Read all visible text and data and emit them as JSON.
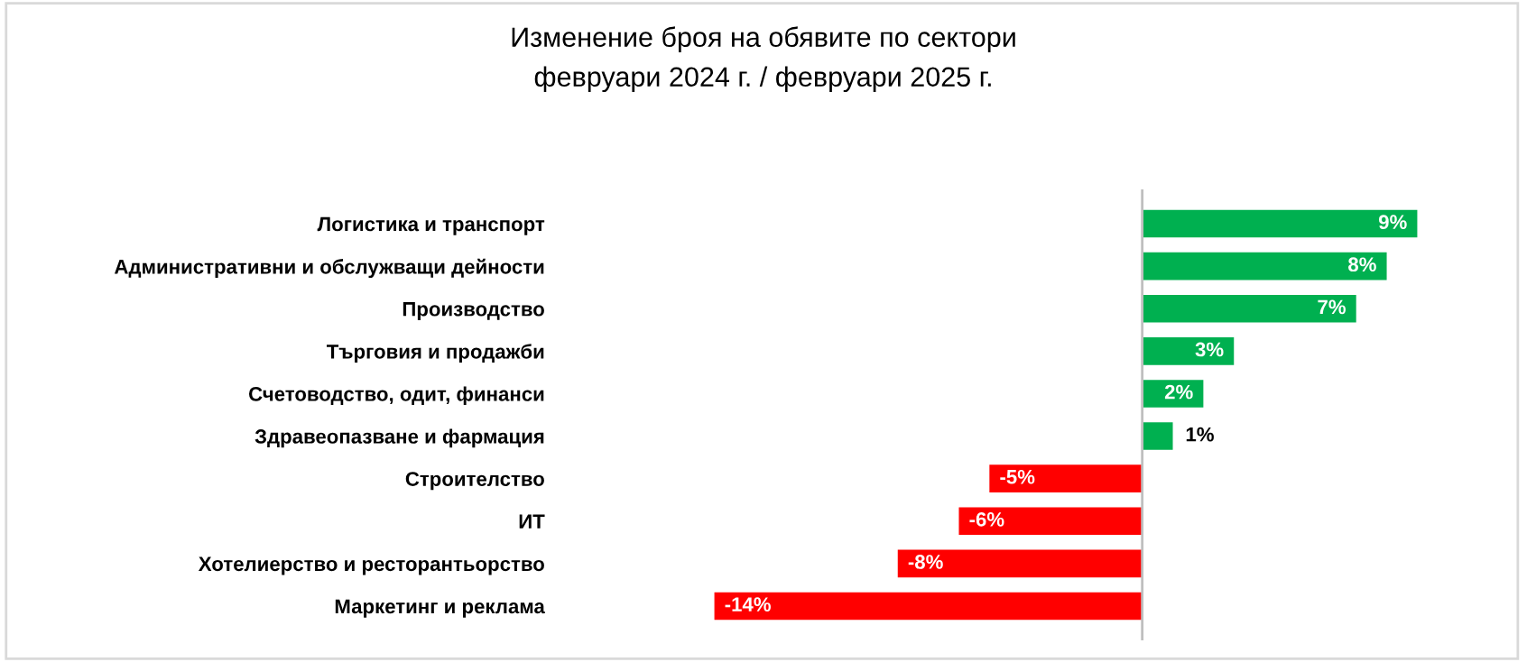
{
  "chart_data": {
    "type": "bar",
    "orientation": "horizontal",
    "title": "Изменение броя на обявите по сектори\nфевруари 2024 г. / февруари 2025 г.",
    "categories": [
      "Логистика и транспорт",
      "Административни и обслужващи дейности",
      "Производство",
      "Търговия и продажби",
      "Счетоводство, одит, финанси",
      "Здравеопазване и фармация",
      "Строителство",
      "ИТ",
      "Хотелиерство и ресторантьорство",
      "Маркетинг и реклама"
    ],
    "values": [
      9,
      8,
      7,
      3,
      2,
      1,
      -5,
      -6,
      -8,
      -14
    ],
    "colors": [
      "#00b050",
      "#00b050",
      "#00b050",
      "#00b050",
      "#00b050",
      "#00b050",
      "#ff0000",
      "#ff0000",
      "#ff0000",
      "#ff0000"
    ],
    "value_labels": [
      "9%",
      "8%",
      "7%",
      "3%",
      "2%",
      "1%",
      "-5%",
      "-6%",
      "-8%",
      "-14%"
    ],
    "grid": false,
    "legend": false
  }
}
